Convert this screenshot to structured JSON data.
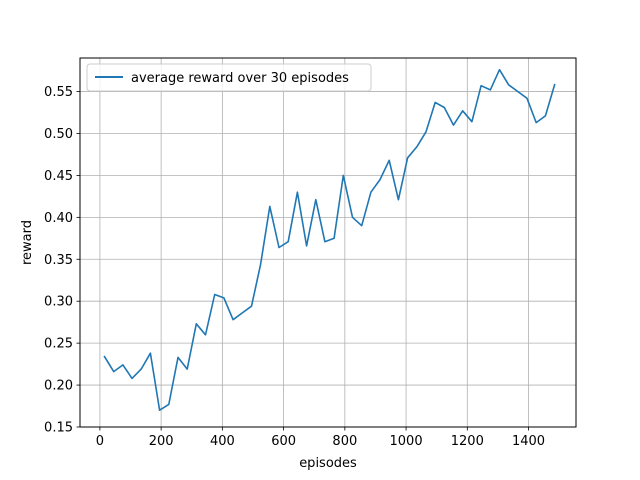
{
  "chart_data": {
    "type": "line",
    "title": "",
    "xlabel": "episodes",
    "ylabel": "reward",
    "xlim": [
      -65,
      1555
    ],
    "ylim": [
      0.15,
      0.59
    ],
    "xticks": [
      0,
      200,
      400,
      600,
      800,
      1000,
      1200,
      1400
    ],
    "yticks": [
      0.15,
      0.2,
      0.25,
      0.3,
      0.35,
      0.4,
      0.45,
      0.5,
      0.55
    ],
    "xtick_labels": [
      "0",
      "200",
      "400",
      "600",
      "800",
      "1000",
      "1200",
      "1400"
    ],
    "ytick_labels": [
      "0.15",
      "0.20",
      "0.25",
      "0.30",
      "0.35",
      "0.40",
      "0.45",
      "0.50",
      "0.55"
    ],
    "grid": true,
    "legend_position": "top-left",
    "series": [
      {
        "name": "average reward over 30 episodes",
        "color": "#1f77b4",
        "x": [
          15,
          45,
          75,
          105,
          135,
          165,
          195,
          225,
          255,
          285,
          315,
          345,
          375,
          405,
          435,
          465,
          495,
          525,
          555,
          585,
          615,
          645,
          675,
          705,
          735,
          765,
          795,
          825,
          855,
          885,
          915,
          945,
          975,
          1005,
          1035,
          1065,
          1095,
          1125,
          1155,
          1185,
          1215,
          1245,
          1275,
          1305,
          1335,
          1365,
          1395,
          1425,
          1455,
          1485
        ],
        "y": [
          0.234,
          0.216,
          0.224,
          0.208,
          0.219,
          0.238,
          0.17,
          0.177,
          0.233,
          0.219,
          0.273,
          0.26,
          0.308,
          0.304,
          0.278,
          0.286,
          0.294,
          0.344,
          0.413,
          0.364,
          0.371,
          0.43,
          0.366,
          0.421,
          0.371,
          0.375,
          0.45,
          0.4,
          0.39,
          0.43,
          0.445,
          0.468,
          0.421,
          0.471,
          0.484,
          0.502,
          0.537,
          0.531,
          0.51,
          0.527,
          0.514,
          0.557,
          0.552,
          0.576,
          0.558,
          0.55,
          0.542,
          0.513,
          0.521,
          0.558
        ]
      }
    ]
  }
}
